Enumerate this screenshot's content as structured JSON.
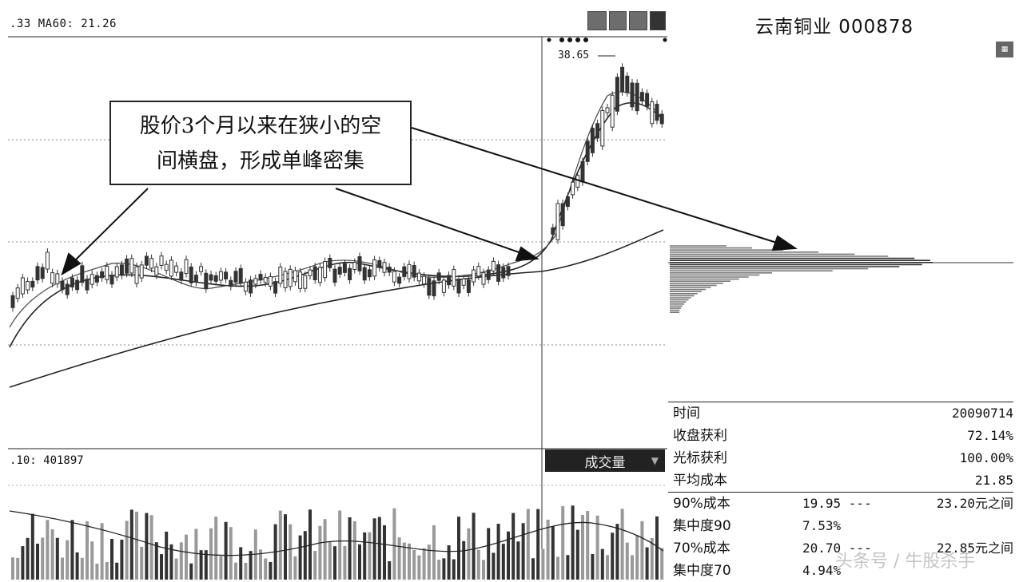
{
  "window": {
    "ma_label": ".33 MA60: 21.26",
    "volume_label": ".10: 401897",
    "volume_selector": "成交量",
    "volume_selector_caret": "▼"
  },
  "toolbar": {
    "btn1": "",
    "btn2": "",
    "btn3": "",
    "btn4": ""
  },
  "chart": {
    "peak_label": "38.65"
  },
  "callout": {
    "line1": "股价3个月以来在狭小的空",
    "line2": "间横盘，形成单峰密集"
  },
  "panel": {
    "title": "云南铜业  000878",
    "icon": "chart-icon",
    "rows": [
      {
        "key": "时间",
        "value": "20090714"
      },
      {
        "key": "收盘获利",
        "value": "72.14%"
      },
      {
        "key": "光标获利",
        "value": "100.00%"
      },
      {
        "key": "平均成本",
        "value": "21.85"
      }
    ],
    "ranges": [
      {
        "key": "90%成本",
        "mid": "19.95 ---",
        "right": "23.20元之间"
      },
      {
        "key": "集中度90",
        "mid": "7.53%",
        "right": ""
      },
      {
        "key": "70%成本",
        "mid": "20.70 ---",
        "right": "22.85元之间"
      },
      {
        "key": "集中度70",
        "mid": "4.94%",
        "right": ""
      }
    ]
  },
  "watermark": "头条号 / 牛股杀手",
  "colors": {
    "accent": "#222222",
    "grid": "#888888",
    "candle": "#333333"
  }
}
